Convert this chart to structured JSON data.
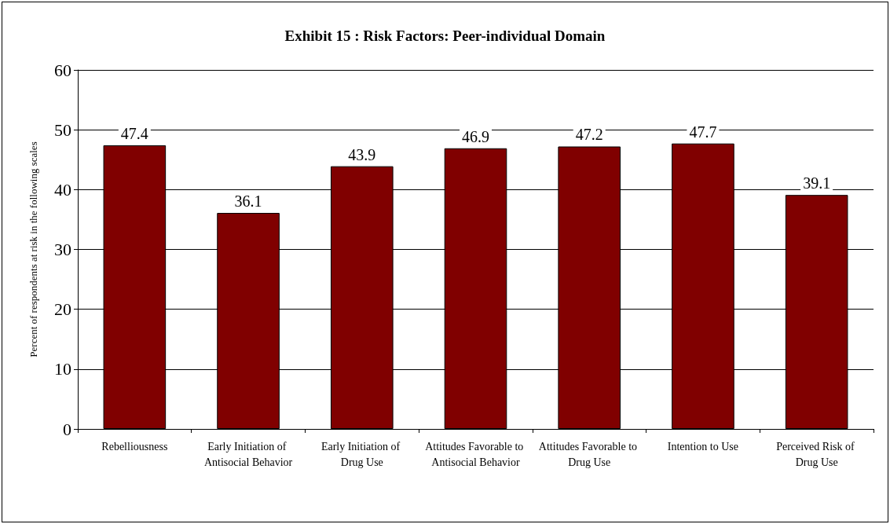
{
  "chart_data": {
    "type": "bar",
    "title": "Exhibit 15 : Risk Factors: Peer-individual Domain",
    "ylabel": "Percent of respondents at risk in the following scales",
    "categories": [
      "Rebelliousness",
      "Early Initiation of Antisocial Behavior",
      "Early Initiation of Drug Use",
      "Attitudes Favorable to Antisocial Behavior",
      "Attitudes Favorable to Drug Use",
      "Intention to Use",
      "Perceived Risk of Drug Use"
    ],
    "values": [
      47.4,
      36.1,
      43.9,
      46.9,
      47.2,
      47.7,
      39.1
    ],
    "color": "#800000",
    "ylim": [
      0,
      60
    ],
    "yticks": [
      0,
      10,
      20,
      30,
      40,
      50,
      60
    ],
    "grid": "y",
    "data_labels": true
  }
}
